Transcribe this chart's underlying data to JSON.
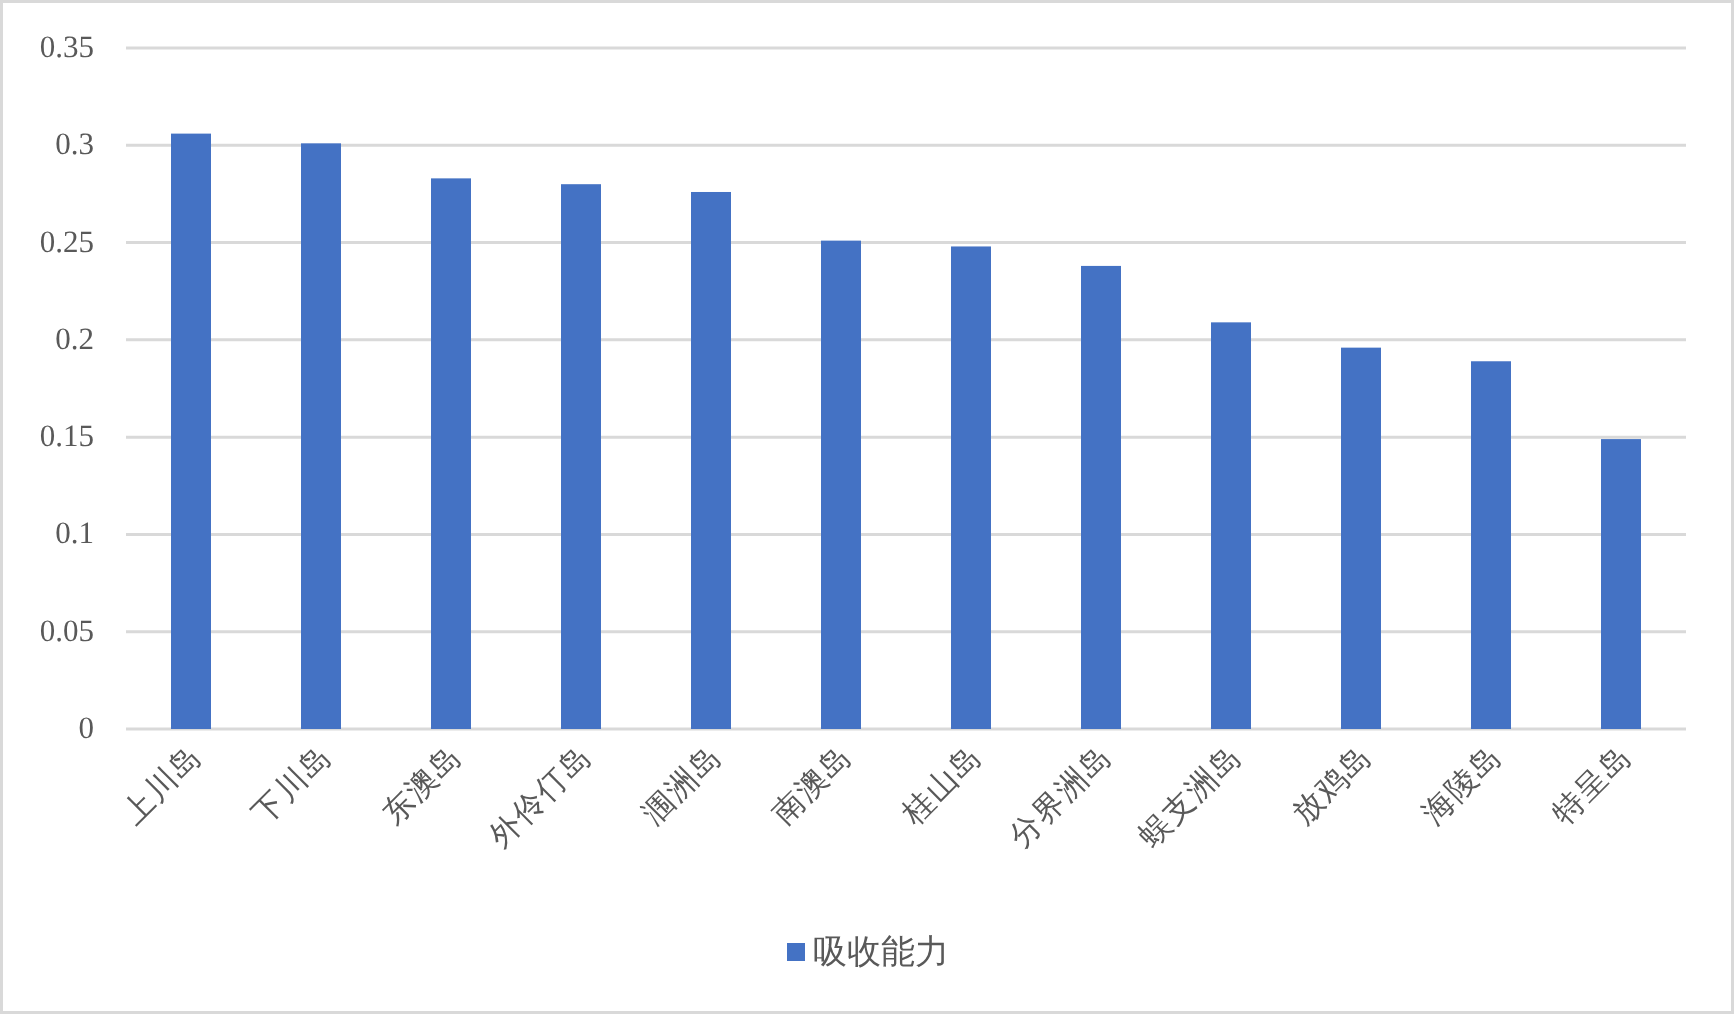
{
  "chart_data": {
    "type": "bar",
    "categories": [
      "上川岛",
      "下川岛",
      "东澳岛",
      "外伶仃岛",
      "涠洲岛",
      "南澳岛",
      "桂山岛",
      "分界洲岛",
      "蜈支洲岛",
      "放鸡岛",
      "海陵岛",
      "特呈岛"
    ],
    "series": [
      {
        "name": "吸收能力",
        "color": "#4472c4",
        "values": [
          0.306,
          0.301,
          0.283,
          0.28,
          0.276,
          0.251,
          0.248,
          0.238,
          0.209,
          0.196,
          0.189,
          0.149
        ]
      }
    ],
    "ylim": [
      0,
      0.35
    ],
    "yticks": [
      0,
      0.05,
      0.1,
      0.15,
      0.2,
      0.25,
      0.3,
      0.35
    ],
    "grid": "y",
    "legend": "bottom"
  }
}
